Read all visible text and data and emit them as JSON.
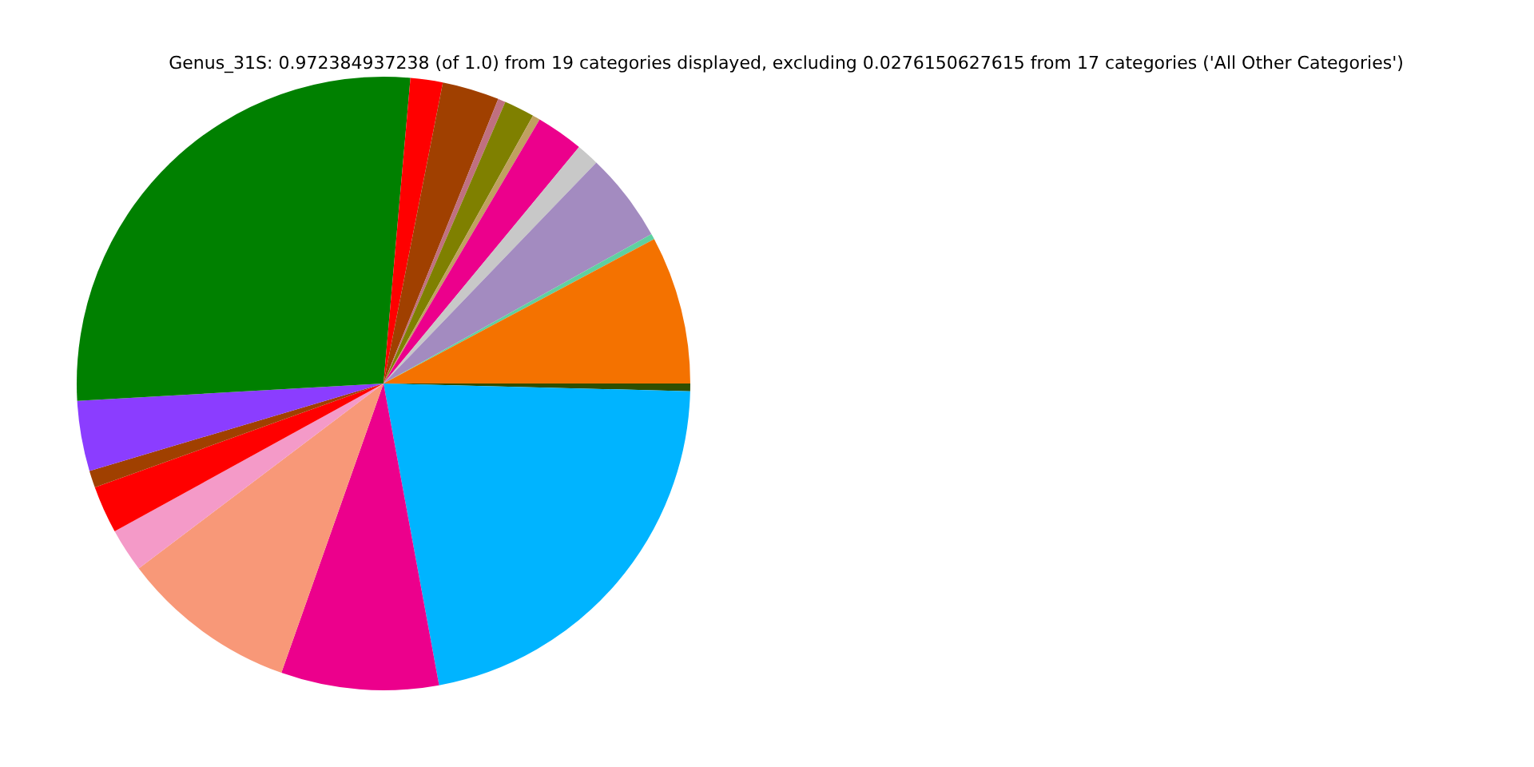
{
  "chart_data": {
    "type": "pie",
    "title": "Genus_31S: 0.972384937238 (of 1.0) from 19 categories displayed, excluding 0.0276150627615 from 17 categories ('All Other Categories')",
    "categories": [
      null,
      null,
      null,
      null,
      null,
      null,
      null,
      null,
      null,
      null,
      null,
      null,
      null,
      null,
      null,
      null,
      null,
      null,
      null
    ],
    "values": [
      7.8,
      0.3,
      4.7,
      1.2,
      2.5,
      0.4,
      1.6,
      0.4,
      3.0,
      1.7,
      27.3,
      3.7,
      0.9,
      2.5,
      2.3,
      9.3,
      8.3,
      21.7,
      0.4
    ],
    "colors": [
      "#f47200",
      "#5fd0a0",
      "#a38bc0",
      "#c8c8c8",
      "#ec008c",
      "#c0a060",
      "#7f8000",
      "#c07080",
      "#a04000",
      "#ff0000",
      "#008000",
      "#8b3dff",
      "#a04000",
      "#ff0000",
      "#f49ac8",
      "#f89878",
      "#ec008c",
      "#00b4ff",
      "#2f4f00"
    ],
    "legend": false
  }
}
